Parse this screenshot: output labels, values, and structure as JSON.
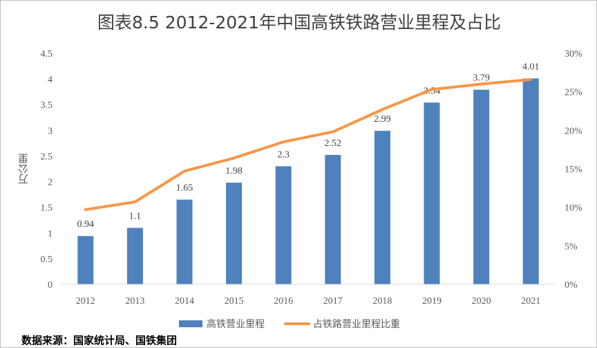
{
  "title": "图表8.5 2012-2021年中国高铁铁路营业里程及占比",
  "source": "数据来源：国家统计局、国铁集团",
  "colors": {
    "bar": "#4f81bd",
    "line": "#f79646",
    "axis": "#d9d9d9",
    "text": "#595959"
  },
  "chart_data": {
    "type": "bar",
    "categories": [
      "2012",
      "2013",
      "2014",
      "2015",
      "2016",
      "2017",
      "2018",
      "2019",
      "2020",
      "2021"
    ],
    "series": [
      {
        "name": "高铁营业里程",
        "type": "bar",
        "axis": "left",
        "values": [
          0.94,
          1.1,
          1.65,
          1.98,
          2.3,
          2.52,
          2.99,
          3.54,
          3.79,
          4.01
        ],
        "data_labels": [
          "0.94",
          "1.1",
          "1.65",
          "1.98",
          "2.3",
          "2.52",
          "2.99",
          "3.54",
          "3.79",
          "4.01"
        ]
      },
      {
        "name": "占铁路营业里程比重",
        "type": "line",
        "axis": "right",
        "values": [
          9.7,
          10.7,
          14.7,
          16.4,
          18.5,
          19.8,
          22.7,
          25.3,
          26.0,
          26.6
        ]
      }
    ],
    "ylabel": "万公里",
    "ylim": [
      0,
      4.5
    ],
    "yticks": [
      "0",
      "0.5",
      "1",
      "1.5",
      "2",
      "2.5",
      "3",
      "3.5",
      "4",
      "4.5"
    ],
    "y2lim": [
      0,
      30
    ],
    "y2ticks": [
      "0%",
      "5%",
      "10%",
      "15%",
      "20%",
      "25%",
      "30%"
    ],
    "grid": false,
    "legend_position": "bottom"
  }
}
